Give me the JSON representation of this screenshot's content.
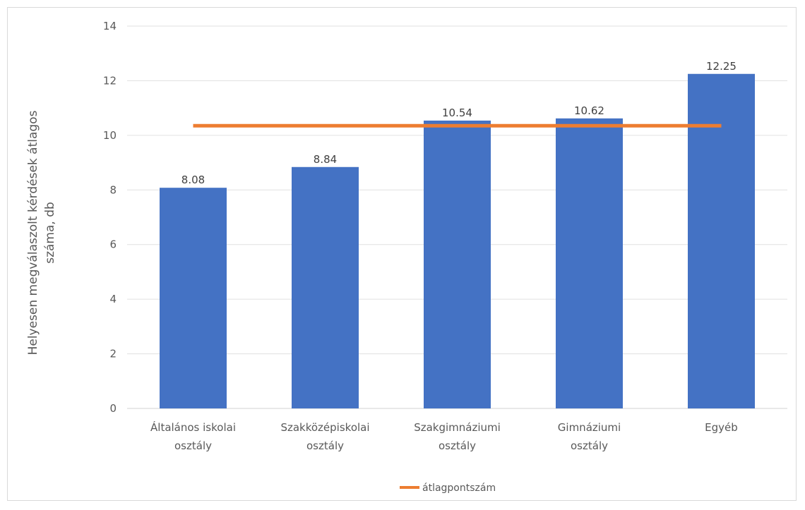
{
  "chart_data": {
    "type": "bar",
    "categories": [
      [
        "Általános iskolai",
        "osztály"
      ],
      [
        "Szakközépiskolai",
        "osztály"
      ],
      [
        "Szakgimnáziumi",
        "osztály"
      ],
      [
        "Gimnáziumi",
        "osztály"
      ],
      [
        "Egyéb"
      ]
    ],
    "values": [
      8.08,
      8.84,
      10.54,
      10.62,
      12.25
    ],
    "value_labels": [
      "8.08",
      "8.84",
      "10.54",
      "10.62",
      "12.25"
    ],
    "bar_color": "#4472c4",
    "line_series": {
      "name": "átlagpontszám",
      "value": 10.35,
      "color": "#ed7d31"
    },
    "ylabel": [
      "Helyesen megválaszolt kérdések átlagos",
      "száma, db"
    ],
    "ylim": [
      0,
      14
    ],
    "yticks": [
      "0",
      "2",
      "4",
      "6",
      "8",
      "10",
      "12",
      "14"
    ],
    "grid": true,
    "legend_position": "bottom"
  }
}
